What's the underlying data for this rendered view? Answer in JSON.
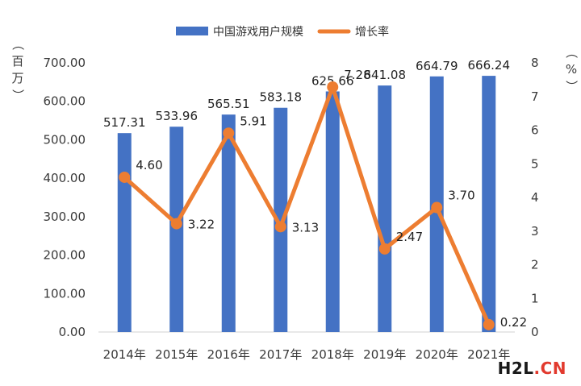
{
  "chart_data": {
    "type": "bar+line",
    "categories": [
      "2014年",
      "2015年",
      "2016年",
      "2017年",
      "2018年",
      "2019年",
      "2020年",
      "2021年"
    ],
    "series": [
      {
        "name": "中国游戏用户规模",
        "type": "bar",
        "axis": "left",
        "color": "#4472c4",
        "values": [
          517.31,
          533.96,
          565.51,
          583.18,
          625.66,
          641.08,
          664.79,
          666.24
        ],
        "labels": [
          "517.31",
          "533.96",
          "565.51",
          "583.18",
          "625.66",
          "641.08",
          "664.79",
          "666.24"
        ]
      },
      {
        "name": "增长率",
        "type": "line",
        "axis": "right",
        "color": "#ed7d31",
        "values": [
          4.6,
          3.22,
          5.91,
          3.13,
          7.28,
          2.47,
          3.7,
          0.22
        ],
        "labels": [
          "4.60",
          "3.22",
          "5.91",
          "3.13",
          "7.28",
          "2.47",
          "3.70",
          "0.22"
        ]
      }
    ],
    "y_left": {
      "unit": "（百万）",
      "range": [
        0,
        700
      ],
      "ticks": [
        "0.00",
        "100.00",
        "200.00",
        "300.00",
        "400.00",
        "500.00",
        "600.00",
        "700.00"
      ]
    },
    "y_right": {
      "unit": "（%）",
      "range": [
        0,
        8
      ],
      "ticks": [
        "0",
        "1",
        "2",
        "3",
        "4",
        "5",
        "6",
        "7",
        "8"
      ]
    },
    "legend_position": "top-center",
    "grid": false
  },
  "watermark": {
    "part_a": "H2L",
    "part_b": ".CN"
  }
}
